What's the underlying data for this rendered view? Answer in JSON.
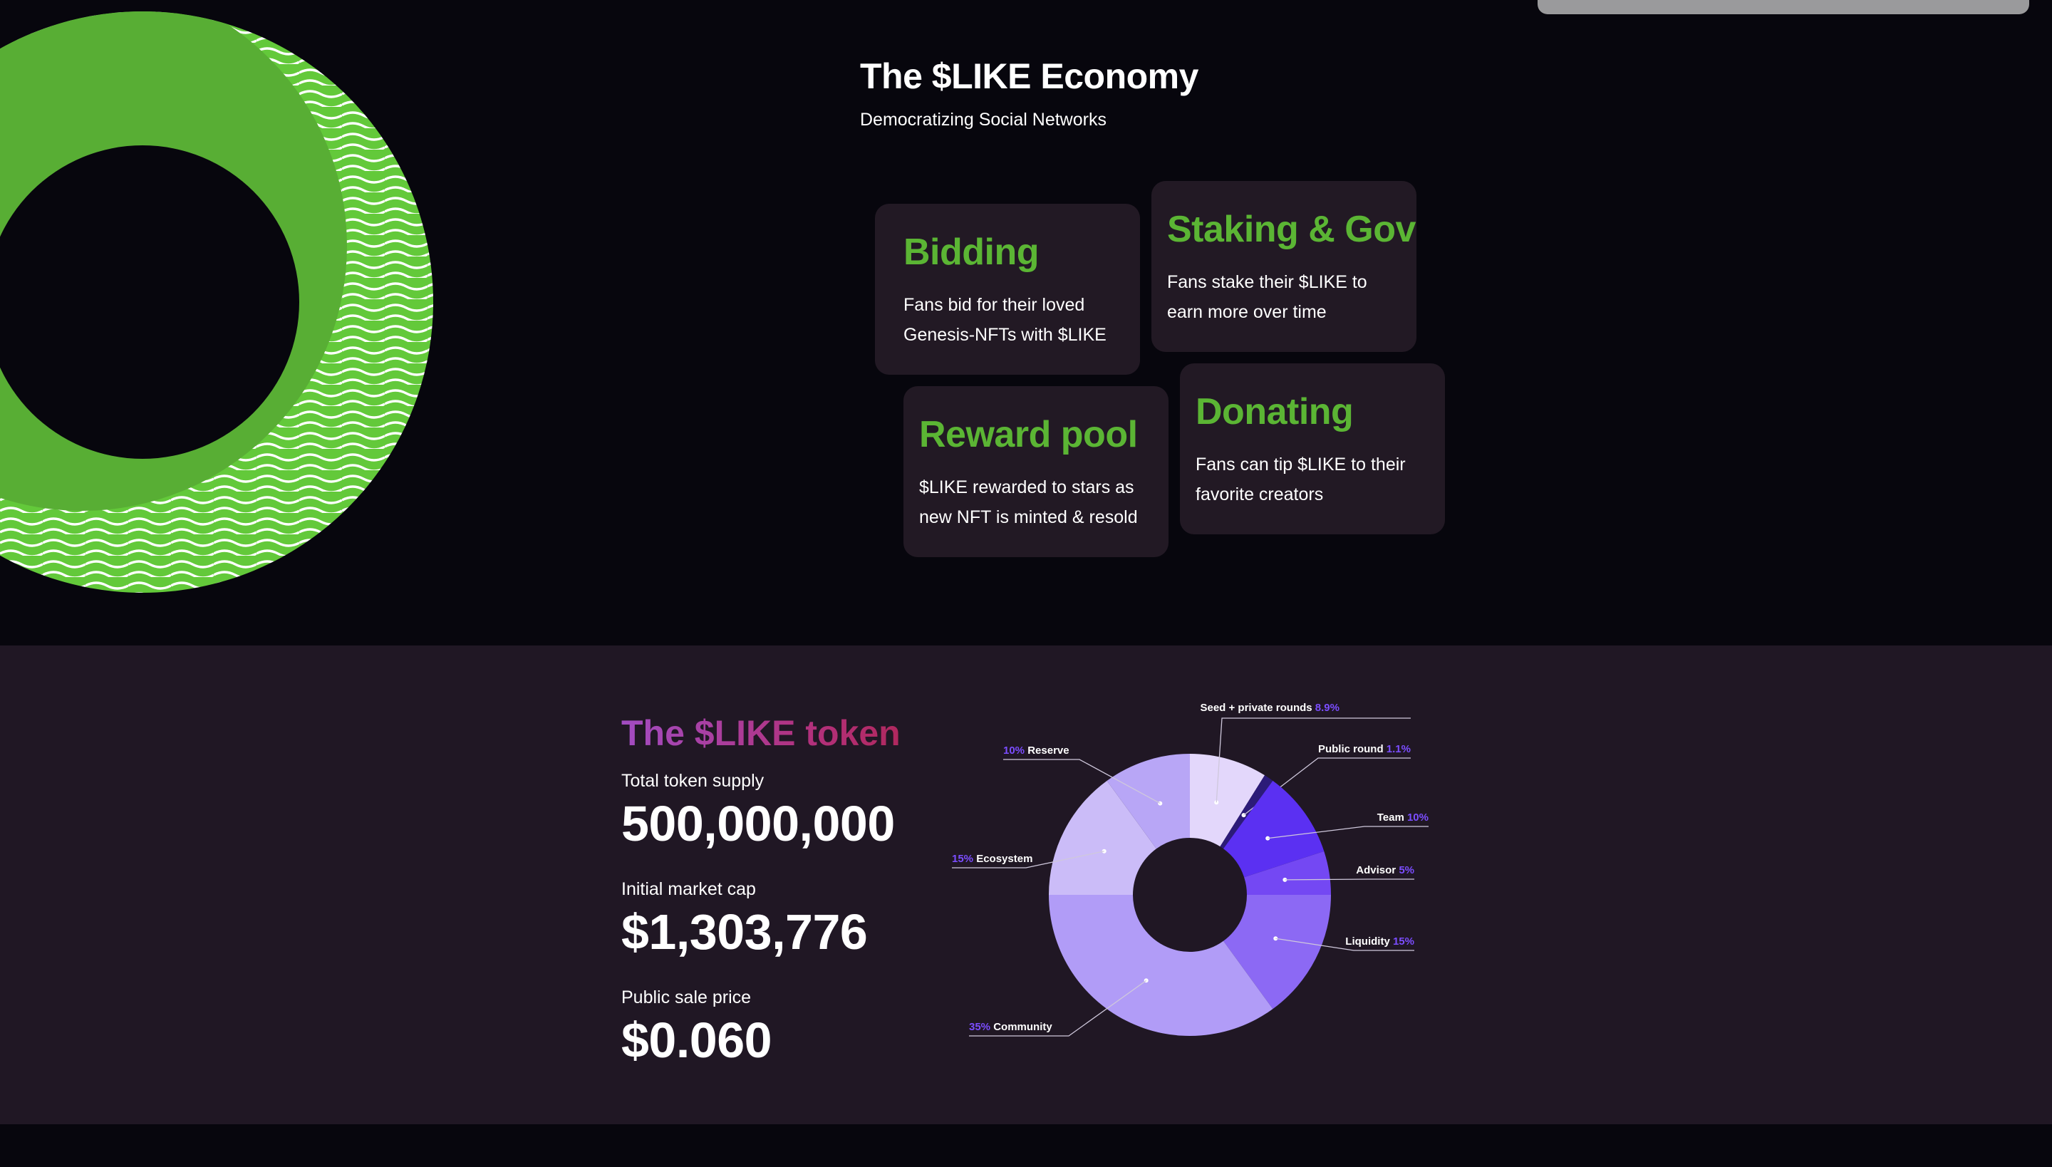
{
  "economy": {
    "title": "The $LIKE Economy",
    "subtitle": "Democratizing Social Networks",
    "cards": [
      {
        "title": "Bidding",
        "text": "Fans bid for their loved Genesis-NFTs with $LIKE"
      },
      {
        "title": "Staking & Gov",
        "text": "Fans stake their $LIKE to earn more over time"
      },
      {
        "title": "Reward pool",
        "text": "$LIKE rewarded to stars as new NFT is minted & resold"
      },
      {
        "title": "Donating",
        "text": "Fans can tip $LIKE to their favorite creators"
      }
    ]
  },
  "token": {
    "title": "The $LIKE token",
    "stats": [
      {
        "label": "Total token supply",
        "value": "500,000,000"
      },
      {
        "label": "Initial market cap",
        "value": "$1,303,776"
      },
      {
        "label": "Public sale price",
        "value": "$0.060"
      }
    ]
  },
  "colors": {
    "background": "#07060d",
    "panel": "#221924",
    "section": "#201724",
    "accent_green": "#5bb534",
    "percent_purple": "#7b4dff"
  },
  "chart_data": {
    "type": "pie",
    "donut": true,
    "title": "",
    "slices": [
      {
        "label": "Seed + private rounds",
        "value": 8.9,
        "display": "8.9%",
        "color": "#e3d7fb"
      },
      {
        "label": "Public round",
        "value": 1.1,
        "display": "1.1%",
        "color": "#2c1b78"
      },
      {
        "label": "Team",
        "value": 10,
        "display": "10%",
        "color": "#5b30f2"
      },
      {
        "label": "Advisor",
        "value": 5,
        "display": "5%",
        "color": "#7448f3"
      },
      {
        "label": "Liquidity",
        "value": 15,
        "display": "15%",
        "color": "#8c69f4"
      },
      {
        "label": "Community",
        "value": 35,
        "display": "35%",
        "color": "#b19cf7"
      },
      {
        "label": "Ecosystem",
        "value": 15,
        "display": "15%",
        "color": "#cbbcf8"
      },
      {
        "label": "Reserve",
        "value": 10,
        "display": "10%",
        "color": "#b8a6f6"
      }
    ]
  }
}
